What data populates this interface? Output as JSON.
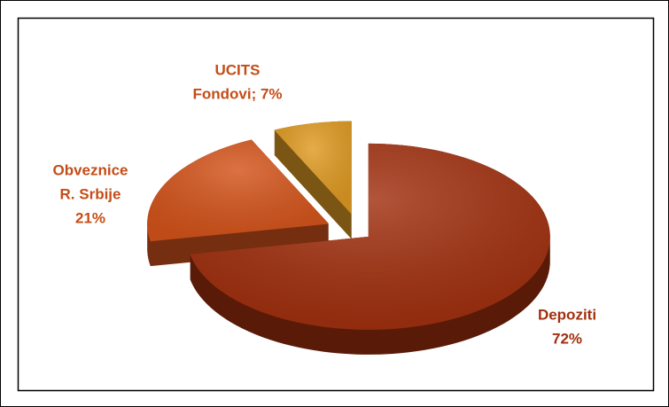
{
  "chart_data": {
    "type": "pie3d",
    "values": [
      72,
      21,
      7
    ],
    "value_labels": [
      [
        "Depoziti",
        "72%"
      ],
      [
        "Obveznice",
        "R. Srbije",
        "21%"
      ],
      [
        "UCITS",
        "Fondovi; 7%"
      ]
    ],
    "colors": [
      "#a1300f",
      "#d4541b",
      "#df9a22"
    ],
    "label_colors": [
      "#a1300f",
      "#c44d17",
      "#c44d17"
    ]
  }
}
